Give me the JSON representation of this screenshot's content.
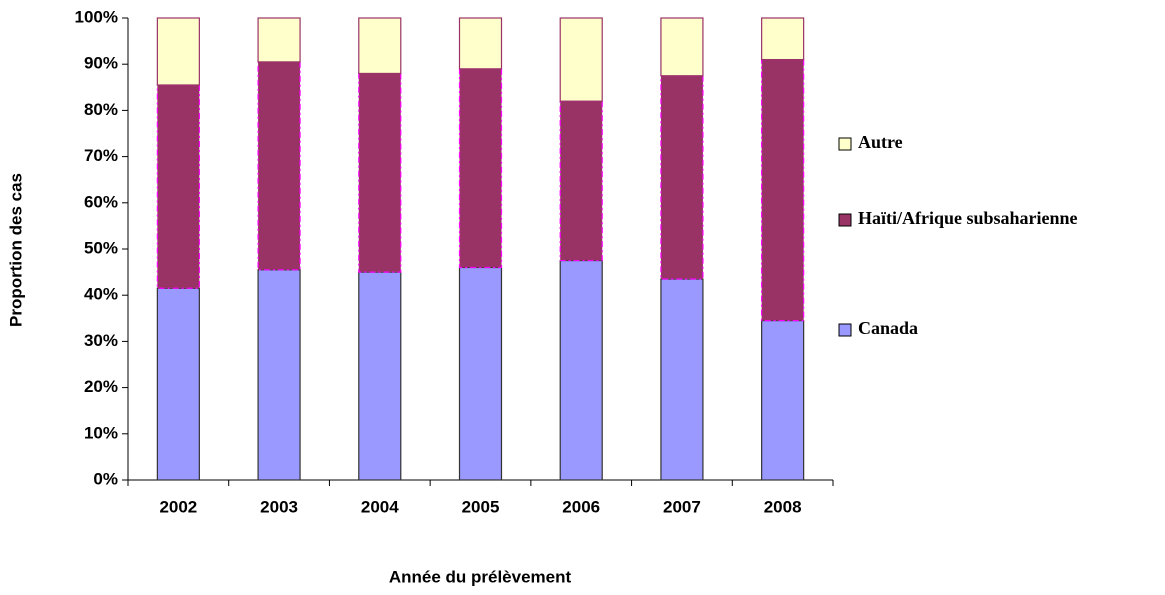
{
  "chart_data": {
    "type": "stacked_bar",
    "categories": [
      "2002",
      "2003",
      "2004",
      "2005",
      "2006",
      "2007",
      "2008"
    ],
    "series": [
      {
        "name": "Canada",
        "color": "#9999ff",
        "values": [
          41.5,
          45.5,
          45,
          46,
          47.5,
          43.5,
          34.5
        ]
      },
      {
        "name": "Haïti/Afrique subsaharienne",
        "color": "#993366",
        "values": [
          44,
          45,
          43,
          43,
          34.5,
          44,
          56.5
        ]
      },
      {
        "name": "Autre",
        "color": "#ffffcc",
        "values": [
          14.5,
          9.5,
          12,
          11,
          18,
          12.5,
          9
        ]
      }
    ],
    "x_label": "Année du prélèvement",
    "y_label": "Proportion des cas",
    "ylim": [
      0,
      100
    ],
    "yticks": [
      {
        "value": 0,
        "label": "0%"
      },
      {
        "value": 10,
        "label": "10%"
      },
      {
        "value": 20,
        "label": "20%"
      },
      {
        "value": 30,
        "label": "30%"
      },
      {
        "value": 40,
        "label": "40%"
      },
      {
        "value": 50,
        "label": "50%"
      },
      {
        "value": 60,
        "label": "60%"
      },
      {
        "value": 70,
        "label": "70%"
      },
      {
        "value": 80,
        "label": "80%"
      },
      {
        "value": 90,
        "label": "90%"
      },
      {
        "value": 100,
        "label": "100%"
      }
    ],
    "legend": "right"
  }
}
